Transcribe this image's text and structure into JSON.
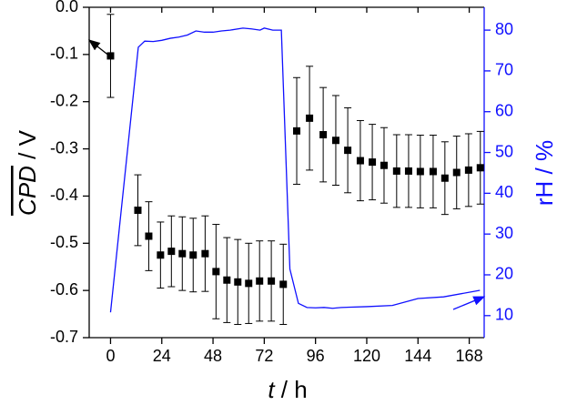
{
  "chart_data": {
    "type": "scatter",
    "xlabel": [
      "t",
      " / h"
    ],
    "ylabel": [
      "CPD",
      " / V"
    ],
    "y2label": "rH / %",
    "xlim": [
      -10,
      175
    ],
    "xticks": [
      0,
      24,
      48,
      72,
      96,
      120,
      144,
      168
    ],
    "ylim": [
      -0.7,
      0.0
    ],
    "yticks": [
      {
        "value": 0,
        "label": "0.0"
      },
      -0.1,
      -0.2,
      -0.3,
      -0.4,
      -0.5,
      -0.6,
      -0.7
    ],
    "y2lim": [
      4.6,
      85.6
    ],
    "y2ticks": [
      10,
      20,
      30,
      40,
      50,
      60,
      70,
      80
    ],
    "series": [
      {
        "type": "scatter",
        "color": "#000000",
        "x": [
          0,
          12.8,
          17.9,
          23.4,
          28.5,
          33.6,
          38.7,
          44.3,
          49.4,
          54.5,
          59.6,
          64.7,
          69.8,
          75.3,
          80.9,
          87.2,
          93.2,
          99.6,
          105.5,
          111.1,
          117,
          122.6,
          128.1,
          134,
          139.6,
          145.1,
          151.1,
          156.6,
          162.1,
          167.7,
          173.2
        ],
        "values": [
          -0.103,
          -0.43,
          -0.485,
          -0.525,
          -0.517,
          -0.522,
          -0.525,
          -0.522,
          -0.56,
          -0.578,
          -0.582,
          -0.585,
          -0.58,
          -0.58,
          -0.587,
          -0.262,
          -0.235,
          -0.27,
          -0.282,
          -0.303,
          -0.325,
          -0.328,
          -0.335,
          -0.347,
          -0.347,
          -0.348,
          -0.348,
          -0.362,
          -0.35,
          -0.345,
          -0.34
        ],
        "errors": [
          0.088,
          0.075,
          0.073,
          0.07,
          0.075,
          0.078,
          0.078,
          0.08,
          0.1,
          0.09,
          0.09,
          0.085,
          0.085,
          0.085,
          0.085,
          0.113,
          0.11,
          0.1,
          0.095,
          0.09,
          0.085,
          0.08,
          0.08,
          0.077,
          0.077,
          0.077,
          0.077,
          0.077,
          0.077,
          0.077,
          0.077
        ]
      },
      {
        "type": "line",
        "color": "#1010ff",
        "axis": "y2",
        "x": [
          0,
          13,
          16,
          20,
          24,
          28,
          32,
          36,
          40,
          44,
          48,
          52,
          56,
          62,
          66,
          70,
          72,
          76,
          80,
          84,
          88,
          92,
          96,
          100,
          104,
          108,
          120,
          132,
          144,
          156,
          173
        ],
        "values": [
          10.8,
          75.8,
          77.3,
          77.2,
          77.5,
          78,
          78.3,
          78.8,
          79.8,
          79.5,
          79.5,
          79.8,
          80,
          80.5,
          80.3,
          80,
          80.5,
          80,
          80,
          21.4,
          13,
          12,
          11.9,
          12,
          11.8,
          12,
          12.2,
          12.5,
          14.2,
          14.6,
          16.2
        ]
      }
    ]
  }
}
